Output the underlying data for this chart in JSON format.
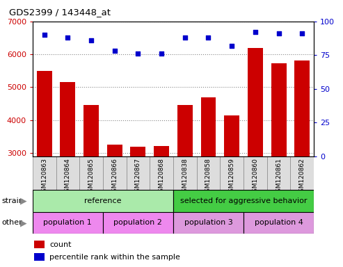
{
  "title": "GDS2399 / 143448_at",
  "samples": [
    "GSM120863",
    "GSM120864",
    "GSM120865",
    "GSM120866",
    "GSM120867",
    "GSM120868",
    "GSM120838",
    "GSM120858",
    "GSM120859",
    "GSM120860",
    "GSM120861",
    "GSM120862"
  ],
  "counts": [
    5500,
    5150,
    4450,
    3250,
    3180,
    3200,
    4450,
    4700,
    4150,
    6200,
    5720,
    5800
  ],
  "percentiles": [
    90,
    88,
    86,
    78,
    76,
    76,
    88,
    88,
    82,
    92,
    91,
    91
  ],
  "ylim_left": [
    2900,
    7000
  ],
  "ylim_right": [
    0,
    100
  ],
  "yticks_left": [
    3000,
    4000,
    5000,
    6000,
    7000
  ],
  "yticks_right": [
    0,
    25,
    50,
    75,
    100
  ],
  "bar_color": "#cc0000",
  "dot_color": "#0000cc",
  "grid_color": "#888888",
  "strain_row": {
    "reference": {
      "start": 0,
      "end": 6,
      "label": "reference",
      "color": "#aaeaaa"
    },
    "aggressive": {
      "start": 6,
      "end": 12,
      "label": "selected for aggressive behavior",
      "color": "#44cc44"
    }
  },
  "other_row": [
    {
      "start": 0,
      "end": 3,
      "label": "population 1",
      "color": "#ee88ee"
    },
    {
      "start": 3,
      "end": 6,
      "label": "population 2",
      "color": "#ee88ee"
    },
    {
      "start": 6,
      "end": 9,
      "label": "population 3",
      "color": "#dd99dd"
    },
    {
      "start": 9,
      "end": 12,
      "label": "population 4",
      "color": "#dd99dd"
    }
  ],
  "strain_label": "strain",
  "other_label": "other",
  "legend_count_color": "#cc0000",
  "legend_pct_color": "#0000cc",
  "count_label": "count",
  "pct_label": "percentile rank within the sample",
  "tick_label_color_left": "#cc0000",
  "tick_label_color_right": "#0000cc",
  "col_bg_color": "#dddddd",
  "col_border_color": "#888888"
}
